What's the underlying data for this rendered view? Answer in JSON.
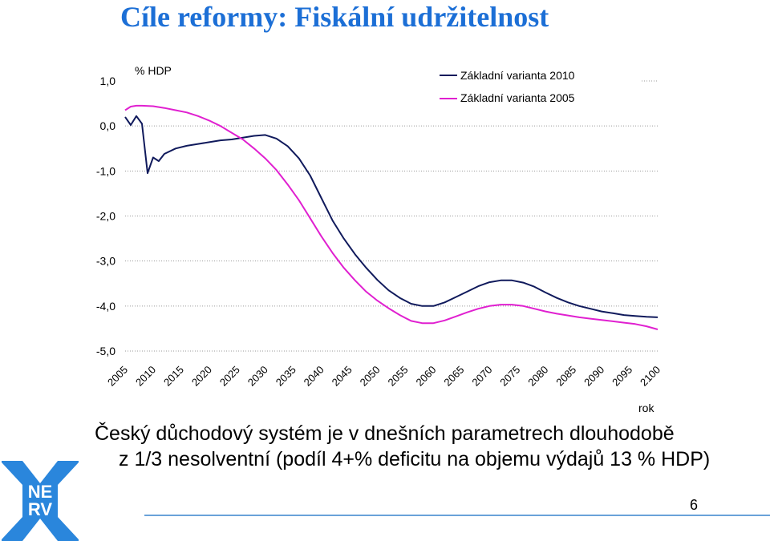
{
  "slide": {
    "title": "Cíle reformy: Fiskální udržitelnost",
    "body_line1": "Český důchodový systém je v dnešních parametrech dlouhodobě",
    "body_line2": "z 1/3 nesolventní (podíl 4+% deficitu na objemu výdajů 13 % HDP)",
    "page_number": "6",
    "logo_text_top": "NE",
    "logo_text_bottom": "RV",
    "colors": {
      "title": "#1c6fd6",
      "logo": "#2a86dc",
      "footer_line": "#6aa2d9"
    }
  },
  "chart_data": {
    "type": "line",
    "title": "",
    "ylabel": "% HDP",
    "xlabel": "rok",
    "ylim": [
      -5.0,
      1.0
    ],
    "yticks": [
      1.0,
      0.0,
      -1.0,
      -2.0,
      -3.0,
      -4.0,
      -5.0
    ],
    "ytick_labels": [
      "1,0",
      "0,0",
      "-1,0",
      "-2,0",
      "-3,0",
      "-4,0",
      "-5,0"
    ],
    "xlim": [
      2005,
      2100
    ],
    "xticks": [
      "2005",
      "2010",
      "2015",
      "2020",
      "2025",
      "2030",
      "2035",
      "2040",
      "2045",
      "2050",
      "2055",
      "2060",
      "2065",
      "2070",
      "2075",
      "2080",
      "2085",
      "2090",
      "2095",
      "2100"
    ],
    "grid": "horizontal dotted",
    "legend_position": "top-right",
    "series": [
      {
        "name": "Základní varianta 2010",
        "color": "#101a5c",
        "points": [
          [
            2005,
            0.2
          ],
          [
            2006,
            0.02
          ],
          [
            2007,
            0.22
          ],
          [
            2008,
            0.05
          ],
          [
            2009,
            -1.05
          ],
          [
            2010,
            -0.7
          ],
          [
            2011,
            -0.78
          ],
          [
            2012,
            -0.62
          ],
          [
            2014,
            -0.5
          ],
          [
            2016,
            -0.44
          ],
          [
            2018,
            -0.4
          ],
          [
            2020,
            -0.36
          ],
          [
            2022,
            -0.32
          ],
          [
            2024,
            -0.3
          ],
          [
            2026,
            -0.26
          ],
          [
            2028,
            -0.22
          ],
          [
            2030,
            -0.2
          ],
          [
            2032,
            -0.28
          ],
          [
            2034,
            -0.45
          ],
          [
            2036,
            -0.72
          ],
          [
            2038,
            -1.1
          ],
          [
            2040,
            -1.6
          ],
          [
            2042,
            -2.1
          ],
          [
            2044,
            -2.5
          ],
          [
            2046,
            -2.85
          ],
          [
            2048,
            -3.15
          ],
          [
            2050,
            -3.42
          ],
          [
            2052,
            -3.65
          ],
          [
            2054,
            -3.82
          ],
          [
            2056,
            -3.95
          ],
          [
            2058,
            -4.0
          ],
          [
            2060,
            -4.0
          ],
          [
            2062,
            -3.92
          ],
          [
            2064,
            -3.8
          ],
          [
            2066,
            -3.68
          ],
          [
            2068,
            -3.56
          ],
          [
            2070,
            -3.47
          ],
          [
            2072,
            -3.43
          ],
          [
            2074,
            -3.43
          ],
          [
            2076,
            -3.48
          ],
          [
            2078,
            -3.57
          ],
          [
            2080,
            -3.7
          ],
          [
            2082,
            -3.82
          ],
          [
            2084,
            -3.92
          ],
          [
            2086,
            -4.0
          ],
          [
            2088,
            -4.06
          ],
          [
            2090,
            -4.12
          ],
          [
            2092,
            -4.16
          ],
          [
            2094,
            -4.2
          ],
          [
            2096,
            -4.22
          ],
          [
            2098,
            -4.24
          ],
          [
            2100,
            -4.25
          ]
        ]
      },
      {
        "name": "Základní varianta 2005",
        "color": "#e020d0",
        "points": [
          [
            2005,
            0.35
          ],
          [
            2006,
            0.43
          ],
          [
            2007,
            0.45
          ],
          [
            2008,
            0.45
          ],
          [
            2010,
            0.44
          ],
          [
            2012,
            0.4
          ],
          [
            2014,
            0.35
          ],
          [
            2016,
            0.3
          ],
          [
            2018,
            0.22
          ],
          [
            2020,
            0.12
          ],
          [
            2022,
            0.0
          ],
          [
            2024,
            -0.15
          ],
          [
            2026,
            -0.3
          ],
          [
            2028,
            -0.5
          ],
          [
            2030,
            -0.72
          ],
          [
            2032,
            -0.98
          ],
          [
            2034,
            -1.3
          ],
          [
            2036,
            -1.65
          ],
          [
            2038,
            -2.05
          ],
          [
            2040,
            -2.45
          ],
          [
            2042,
            -2.82
          ],
          [
            2044,
            -3.15
          ],
          [
            2046,
            -3.43
          ],
          [
            2048,
            -3.68
          ],
          [
            2050,
            -3.88
          ],
          [
            2052,
            -4.05
          ],
          [
            2054,
            -4.2
          ],
          [
            2056,
            -4.33
          ],
          [
            2058,
            -4.38
          ],
          [
            2060,
            -4.38
          ],
          [
            2062,
            -4.32
          ],
          [
            2064,
            -4.23
          ],
          [
            2066,
            -4.14
          ],
          [
            2068,
            -4.06
          ],
          [
            2070,
            -4.0
          ],
          [
            2072,
            -3.97
          ],
          [
            2074,
            -3.97
          ],
          [
            2076,
            -4.0
          ],
          [
            2078,
            -4.06
          ],
          [
            2080,
            -4.12
          ],
          [
            2082,
            -4.17
          ],
          [
            2084,
            -4.21
          ],
          [
            2086,
            -4.25
          ],
          [
            2088,
            -4.28
          ],
          [
            2090,
            -4.31
          ],
          [
            2092,
            -4.34
          ],
          [
            2094,
            -4.37
          ],
          [
            2096,
            -4.4
          ],
          [
            2098,
            -4.45
          ],
          [
            2100,
            -4.52
          ]
        ]
      }
    ]
  }
}
